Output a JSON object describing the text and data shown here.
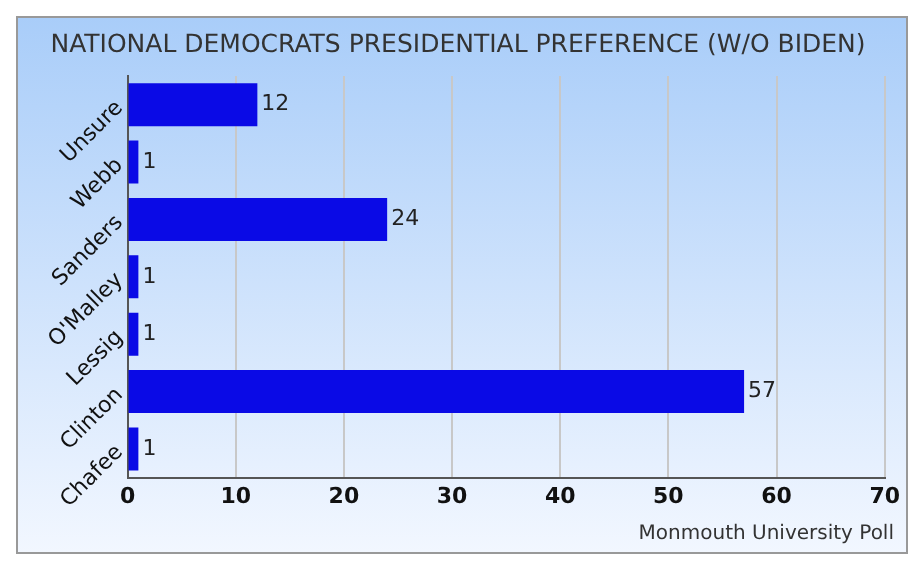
{
  "chart_data": {
    "type": "bar",
    "orientation": "horizontal",
    "title": "NATIONAL DEMOCRATS PRESIDENTIAL PREFERENCE (W/O BIDEN)",
    "categories": [
      "Unsure",
      "Webb",
      "Sanders",
      "O'Malley",
      "Lessig",
      "Clinton",
      "Chafee"
    ],
    "values": [
      12,
      1,
      24,
      1,
      1,
      57,
      1
    ],
    "color": "#0a0ae6",
    "xlim": [
      0,
      70
    ],
    "xticks": [
      0,
      10,
      20,
      30,
      40,
      50,
      60,
      70
    ],
    "grid": "x",
    "data_labels": true,
    "legend": false,
    "annotations": [
      "Monmouth University Poll"
    ]
  }
}
